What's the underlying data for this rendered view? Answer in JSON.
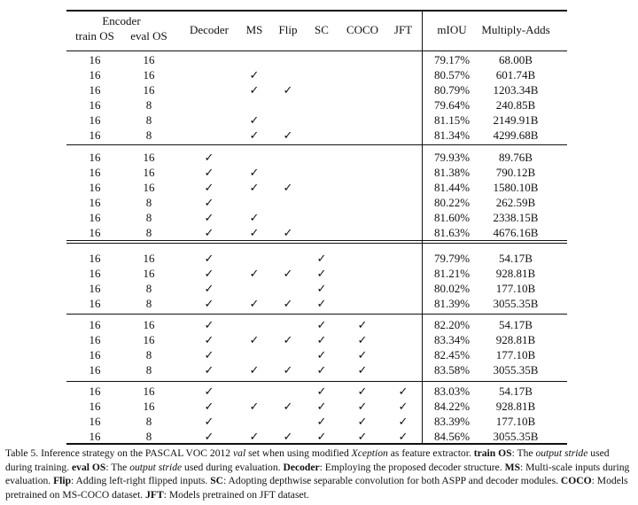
{
  "table": {
    "header": {
      "group": "Encoder",
      "columns": [
        "train OS",
        "eval OS",
        "Decoder",
        "MS",
        "Flip",
        "SC",
        "COCO",
        "JFT",
        "mIOU",
        "Multiply-Adds"
      ]
    },
    "groups": [
      [
        [
          "16",
          "16",
          null,
          null,
          null,
          null,
          null,
          null,
          "79.17%",
          "68.00B"
        ],
        [
          "16",
          "16",
          null,
          "✓",
          null,
          null,
          null,
          null,
          "80.57%",
          "601.74B"
        ],
        [
          "16",
          "16",
          null,
          "✓",
          "✓",
          null,
          null,
          null,
          "80.79%",
          "1203.34B"
        ],
        [
          "16",
          "8",
          null,
          null,
          null,
          null,
          null,
          null,
          "79.64%",
          "240.85B"
        ],
        [
          "16",
          "8",
          null,
          "✓",
          null,
          null,
          null,
          null,
          "81.15%",
          "2149.91B"
        ],
        [
          "16",
          "8",
          null,
          "✓",
          "✓",
          null,
          null,
          null,
          "81.34%",
          "4299.68B"
        ]
      ],
      [
        [
          "16",
          "16",
          "✓",
          null,
          null,
          null,
          null,
          null,
          "79.93%",
          "89.76B"
        ],
        [
          "16",
          "16",
          "✓",
          "✓",
          null,
          null,
          null,
          null,
          "81.38%",
          "790.12B"
        ],
        [
          "16",
          "16",
          "✓",
          "✓",
          "✓",
          null,
          null,
          null,
          "81.44%",
          "1580.10B"
        ],
        [
          "16",
          "8",
          "✓",
          null,
          null,
          null,
          null,
          null,
          "80.22%",
          "262.59B"
        ],
        [
          "16",
          "8",
          "✓",
          "✓",
          null,
          null,
          null,
          null,
          "81.60%",
          "2338.15B"
        ],
        [
          "16",
          "8",
          "✓",
          "✓",
          "✓",
          null,
          null,
          null,
          "81.63%",
          "4676.16B"
        ]
      ],
      [
        [
          "16",
          "16",
          "✓",
          null,
          null,
          "✓",
          null,
          null,
          "79.79%",
          "54.17B"
        ],
        [
          "16",
          "16",
          "✓",
          "✓",
          "✓",
          "✓",
          null,
          null,
          "81.21%",
          "928.81B"
        ],
        [
          "16",
          "8",
          "✓",
          null,
          null,
          "✓",
          null,
          null,
          "80.02%",
          "177.10B"
        ],
        [
          "16",
          "8",
          "✓",
          "✓",
          "✓",
          "✓",
          null,
          null,
          "81.39%",
          "3055.35B"
        ]
      ],
      [
        [
          "16",
          "16",
          "✓",
          null,
          null,
          "✓",
          "✓",
          null,
          "82.20%",
          "54.17B"
        ],
        [
          "16",
          "16",
          "✓",
          "✓",
          "✓",
          "✓",
          "✓",
          null,
          "83.34%",
          "928.81B"
        ],
        [
          "16",
          "8",
          "✓",
          null,
          null,
          "✓",
          "✓",
          null,
          "82.45%",
          "177.10B"
        ],
        [
          "16",
          "8",
          "✓",
          "✓",
          "✓",
          "✓",
          "✓",
          null,
          "83.58%",
          "3055.35B"
        ]
      ],
      [
        [
          "16",
          "16",
          "✓",
          null,
          null,
          "✓",
          "✓",
          "✓",
          "83.03%",
          "54.17B"
        ],
        [
          "16",
          "16",
          "✓",
          "✓",
          "✓",
          "✓",
          "✓",
          "✓",
          "84.22%",
          "928.81B"
        ],
        [
          "16",
          "8",
          "✓",
          null,
          null,
          "✓",
          "✓",
          "✓",
          "83.39%",
          "177.10B"
        ],
        [
          "16",
          "8",
          "✓",
          "✓",
          "✓",
          "✓",
          "✓",
          "✓",
          "84.56%",
          "3055.35B"
        ]
      ]
    ]
  },
  "caption": [
    {
      "text": "Table 5. Inference strategy on the PASCAL VOC 2012 "
    },
    {
      "text": "val",
      "style": "italic"
    },
    {
      "text": " set when using modified "
    },
    {
      "text": "Xception",
      "style": "italic"
    },
    {
      "text": " as feature extractor. "
    },
    {
      "text": "train OS",
      "style": "bold"
    },
    {
      "text": ": The "
    },
    {
      "text": "output stride",
      "style": "italic"
    },
    {
      "text": " used during training. "
    },
    {
      "text": "eval OS",
      "style": "bold"
    },
    {
      "text": ": The "
    },
    {
      "text": "output stride",
      "style": "italic"
    },
    {
      "text": " used during evaluation. "
    },
    {
      "text": "Decoder",
      "style": "bold"
    },
    {
      "text": ": Employing the proposed decoder structure. "
    },
    {
      "text": "MS",
      "style": "bold"
    },
    {
      "text": ": Multi-scale inputs during evaluation. "
    },
    {
      "text": "Flip",
      "style": "bold"
    },
    {
      "text": ": Adding left-right flipped inputs. "
    },
    {
      "text": "SC",
      "style": "bold"
    },
    {
      "text": ": Adopting depthwise separable convolution for both ASPP and decoder modules. "
    },
    {
      "text": "COCO",
      "style": "bold"
    },
    {
      "text": ": Models pretrained on MS-COCO dataset. "
    },
    {
      "text": "JFT",
      "style": "bold"
    },
    {
      "text": ": Models pretrained on JFT dataset."
    }
  ]
}
